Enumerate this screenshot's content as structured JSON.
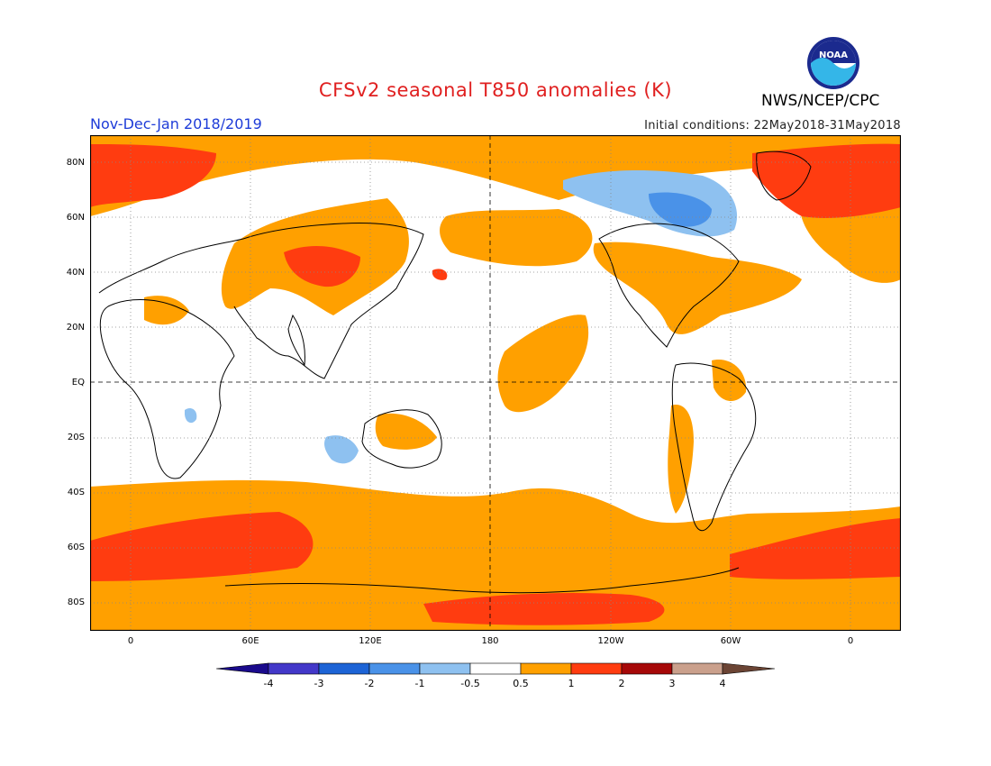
{
  "title": "CFSv2 seasonal T850 anomalies (K)",
  "subtitle": "Nov-Dec-Jan 2018/2019",
  "initial_conditions": "Initial conditions: 22May2018-31May2018",
  "agency": "NWS/NCEP/CPC",
  "logo_text": "NOAA",
  "lat_labels": [
    "80N",
    "60N",
    "40N",
    "20N",
    "EQ",
    "20S",
    "40S",
    "60S",
    "80S"
  ],
  "lon_labels": [
    "0",
    "60E",
    "120E",
    "180",
    "120W",
    "60W",
    "0"
  ],
  "colorbar": {
    "labels": [
      "-4",
      "-3",
      "-2",
      "-1",
      "-0.5",
      "0.5",
      "1",
      "2",
      "3",
      "4"
    ],
    "colors": [
      "#1a0a8c",
      "#4338c9",
      "#1d64d6",
      "#4a92e8",
      "#8ec1f0",
      "#ffffff",
      "#ffa000",
      "#ff3c10",
      "#a60808",
      "#caa08c",
      "#6b4434"
    ]
  },
  "colors": {
    "warm1": "#ffa000",
    "warm2": "#ff3c10",
    "cool1": "#8ec1f0",
    "cool2": "#4a92e8"
  }
}
